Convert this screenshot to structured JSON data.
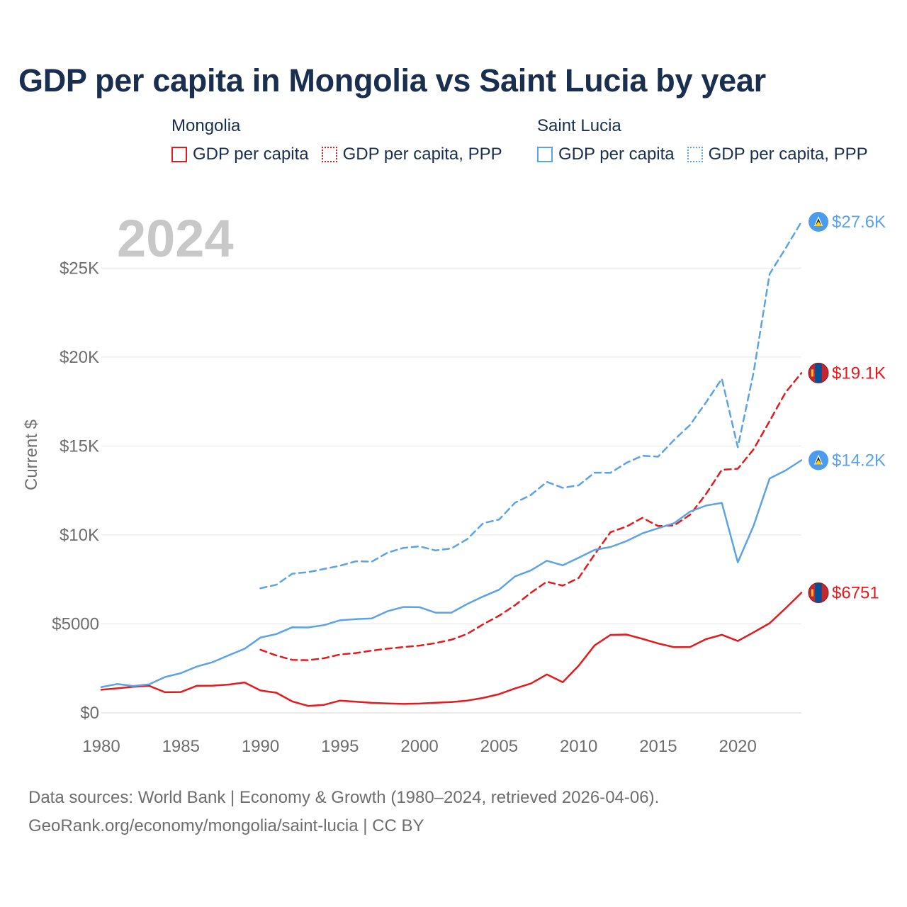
{
  "title": "GDP per capita in Mongolia vs Saint Lucia by year",
  "legend": {
    "groups": [
      {
        "name": "Mongolia",
        "items": [
          {
            "label": "GDP per capita",
            "style": "solid",
            "color": "#e41a1c"
          },
          {
            "label": "GDP per capita, PPP",
            "style": "dotted",
            "color": "#e41a1c"
          }
        ]
      },
      {
        "name": "Saint Lucia",
        "items": [
          {
            "label": "GDP per capita",
            "style": "solid",
            "color": "#5ba3e6"
          },
          {
            "label": "GDP per capita, PPP",
            "style": "dotted",
            "color": "#5ba3e6"
          }
        ]
      }
    ]
  },
  "year_overlay": "2024",
  "footer": {
    "line1": "Data sources: World Bank | Economy & Growth (1980–2024, retrieved 2026-04-06).",
    "line2": "GeoRank.org/economy/mongolia/saint-lucia | CC BY"
  },
  "chart_data": {
    "type": "line",
    "title": "GDP per capita in Mongolia vs Saint Lucia by year",
    "xlabel": "",
    "ylabel": "Current $",
    "xlim": [
      1980,
      2024
    ],
    "ylim": [
      0,
      27600
    ],
    "x_ticks": [
      1980,
      1985,
      1990,
      1995,
      2000,
      2005,
      2010,
      2015,
      2020
    ],
    "x_tick_labels": [
      "1980",
      "1985",
      "1990",
      "1995",
      "2000",
      "2005",
      "2010",
      "2015",
      "2020"
    ],
    "y_ticks": [
      0,
      5000,
      10000,
      15000,
      20000,
      25000
    ],
    "y_tick_labels": [
      "$0",
      "$5000",
      "$10K",
      "$15K",
      "$20K",
      "$25K"
    ],
    "grid": true,
    "series": [
      {
        "name": "Mongolia GDP per capita",
        "country": "Mongolia",
        "color": "#e41a1c",
        "dash": "solid",
        "end_label": "$6751",
        "flag": "mongolia-flag-icon",
        "x": [
          1980,
          1981,
          1982,
          1983,
          1984,
          1985,
          1986,
          1987,
          1988,
          1989,
          1990,
          1991,
          1992,
          1993,
          1994,
          1995,
          1996,
          1997,
          1998,
          1999,
          2000,
          2001,
          2002,
          2003,
          2004,
          2005,
          2006,
          2007,
          2008,
          2009,
          2010,
          2011,
          2012,
          2013,
          2014,
          2015,
          2016,
          2017,
          2018,
          2019,
          2020,
          2021,
          2022,
          2023,
          2024
        ],
        "values": [
          1300,
          1380,
          1460,
          1520,
          1160,
          1170,
          1520,
          1530,
          1590,
          1710,
          1260,
          1130,
          640,
          390,
          450,
          690,
          630,
          560,
          530,
          500,
          520,
          570,
          610,
          690,
          840,
          1050,
          1370,
          1650,
          2160,
          1720,
          2650,
          3790,
          4380,
          4400,
          4160,
          3900,
          3690,
          3700,
          4140,
          4390,
          4040,
          4530,
          5040,
          5870,
          6751
        ]
      },
      {
        "name": "Mongolia GDP per capita, PPP",
        "country": "Mongolia",
        "color": "#e41a1c",
        "dash": "dashed",
        "end_label": "$19.1K",
        "flag": "mongolia-flag-icon",
        "x": [
          1990,
          1991,
          1992,
          1993,
          1994,
          1995,
          1996,
          1997,
          1998,
          1999,
          2000,
          2001,
          2002,
          2003,
          2004,
          2005,
          2006,
          2007,
          2008,
          2009,
          2010,
          2011,
          2012,
          2013,
          2014,
          2015,
          2016,
          2017,
          2018,
          2019,
          2020,
          2021,
          2022,
          2023,
          2024
        ],
        "values": [
          3550,
          3220,
          2980,
          2960,
          3070,
          3280,
          3360,
          3500,
          3610,
          3700,
          3780,
          3920,
          4110,
          4440,
          4980,
          5460,
          6050,
          6750,
          7370,
          7150,
          7580,
          8900,
          10150,
          10470,
          10960,
          10500,
          10540,
          11130,
          12300,
          13660,
          13720,
          14820,
          16400,
          18000,
          19100
        ]
      },
      {
        "name": "Saint Lucia GDP per capita",
        "country": "Saint Lucia",
        "color": "#5ba3e6",
        "dash": "solid",
        "end_label": "$14.2K",
        "flag": "saint-lucia-flag-icon",
        "x": [
          1980,
          1981,
          1982,
          1983,
          1984,
          1985,
          1986,
          1987,
          1988,
          1989,
          1990,
          1991,
          1992,
          1993,
          1994,
          1995,
          1996,
          1997,
          1998,
          1999,
          2000,
          2001,
          2002,
          2003,
          2004,
          2005,
          2006,
          2007,
          2008,
          2009,
          2010,
          2011,
          2012,
          2013,
          2014,
          2015,
          2016,
          2017,
          2018,
          2019,
          2020,
          2021,
          2022,
          2023,
          2024
        ],
        "values": [
          1450,
          1620,
          1510,
          1600,
          2010,
          2230,
          2600,
          2850,
          3230,
          3600,
          4230,
          4430,
          4810,
          4800,
          4930,
          5200,
          5270,
          5310,
          5720,
          5950,
          5940,
          5630,
          5630,
          6120,
          6540,
          6920,
          7670,
          8010,
          8550,
          8290,
          8720,
          9160,
          9320,
          9650,
          10090,
          10380,
          10660,
          11310,
          11650,
          11800,
          8460,
          10530,
          13170,
          13620,
          14200
        ]
      },
      {
        "name": "Saint Lucia GDP per capita, PPP",
        "country": "Saint Lucia",
        "color": "#5ba3e6",
        "dash": "dashed",
        "end_label": "$27.6K",
        "flag": "saint-lucia-flag-icon",
        "x": [
          1990,
          1991,
          1992,
          1993,
          1994,
          1995,
          1996,
          1997,
          1998,
          1999,
          2000,
          2001,
          2002,
          2003,
          2004,
          2005,
          2006,
          2007,
          2008,
          2009,
          2010,
          2011,
          2012,
          2013,
          2014,
          2015,
          2016,
          2017,
          2018,
          2019,
          2020,
          2021,
          2022,
          2023,
          2024
        ],
        "values": [
          7000,
          7200,
          7820,
          7910,
          8090,
          8270,
          8520,
          8500,
          9010,
          9270,
          9360,
          9130,
          9240,
          9770,
          10660,
          10870,
          11810,
          12250,
          12980,
          12650,
          12790,
          13500,
          13490,
          14050,
          14450,
          14400,
          15340,
          16180,
          17450,
          18780,
          14930,
          19150,
          24670,
          26100,
          27600
        ]
      }
    ]
  }
}
